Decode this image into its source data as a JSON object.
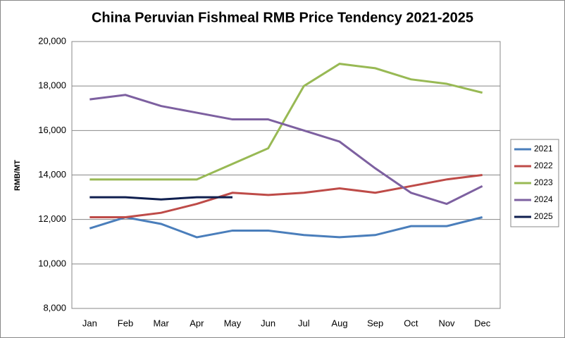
{
  "chart_data": {
    "type": "line",
    "title": "China Peruvian Fishmeal RMB Price Tendency 2021-2025",
    "y_label": "RMB/MT",
    "categories": [
      "Jan",
      "Feb",
      "Mar",
      "Apr",
      "May",
      "Jun",
      "Jul",
      "Aug",
      "Sep",
      "Oct",
      "Nov",
      "Dec"
    ],
    "series": [
      {
        "name": "2021",
        "color": "#4a7ebb",
        "values": [
          11600,
          12100,
          11800,
          11200,
          11500,
          11500,
          11300,
          11200,
          11300,
          11700,
          11700,
          12100
        ]
      },
      {
        "name": "2022",
        "color": "#be4b48",
        "values": [
          12100,
          12100,
          12300,
          12700,
          13200,
          13100,
          13200,
          13400,
          13200,
          13500,
          13800,
          14000
        ]
      },
      {
        "name": "2023",
        "color": "#98b954",
        "values": [
          13800,
          13800,
          13800,
          13800,
          14500,
          15200,
          18000,
          19000,
          18800,
          18300,
          18100,
          17700
        ]
      },
      {
        "name": "2024",
        "color": "#7d60a0",
        "values": [
          17400,
          17600,
          17100,
          16800,
          16500,
          16500,
          16000,
          15500,
          14300,
          13200,
          12700,
          13500
        ]
      },
      {
        "name": "2025",
        "color": "#0f1f4f",
        "values": [
          13000,
          13000,
          12900,
          13000,
          13000,
          null,
          null,
          null,
          null,
          null,
          null,
          null
        ]
      }
    ],
    "ylim": [
      8000,
      20000
    ],
    "yticks": [
      {
        "value": 8000,
        "label": "8,000"
      },
      {
        "value": 10000,
        "label": "10,000"
      },
      {
        "value": 12000,
        "label": "12,000"
      },
      {
        "value": 14000,
        "label": "14,000"
      },
      {
        "value": 16000,
        "label": "16,000"
      },
      {
        "value": 18000,
        "label": "18,000"
      },
      {
        "value": 20000,
        "label": "20,000"
      }
    ],
    "grid": true,
    "legend": "right"
  }
}
